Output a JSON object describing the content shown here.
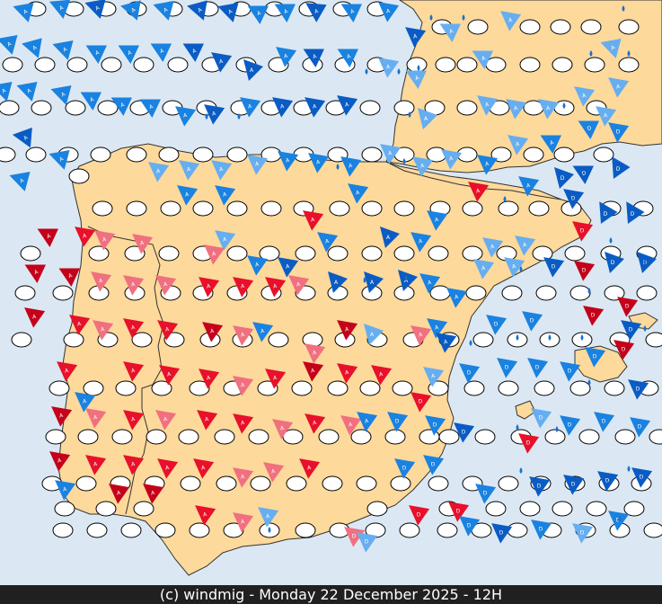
{
  "map": {
    "region": "Iberian Peninsula",
    "sea_color": "#dbe8f3",
    "land_color": "#fdd99b",
    "border_color": "#333333",
    "no_wind_symbol": "white-ellipse",
    "wind_symbol": "triangle-pennant",
    "symbol_letters": [
      "A",
      "D"
    ],
    "drop_icon": "water-drop-icon",
    "colors": {
      "warm_dark": "#c4001a",
      "warm": "#e8102a",
      "warm_light": "#f07080",
      "cool_dark": "#0a5cc4",
      "cool": "#1a82e0",
      "cool_light": "#66aef0"
    }
  },
  "footer": {
    "copyright": "(c) windmig - Monday 22 December 2025 - 12H"
  }
}
